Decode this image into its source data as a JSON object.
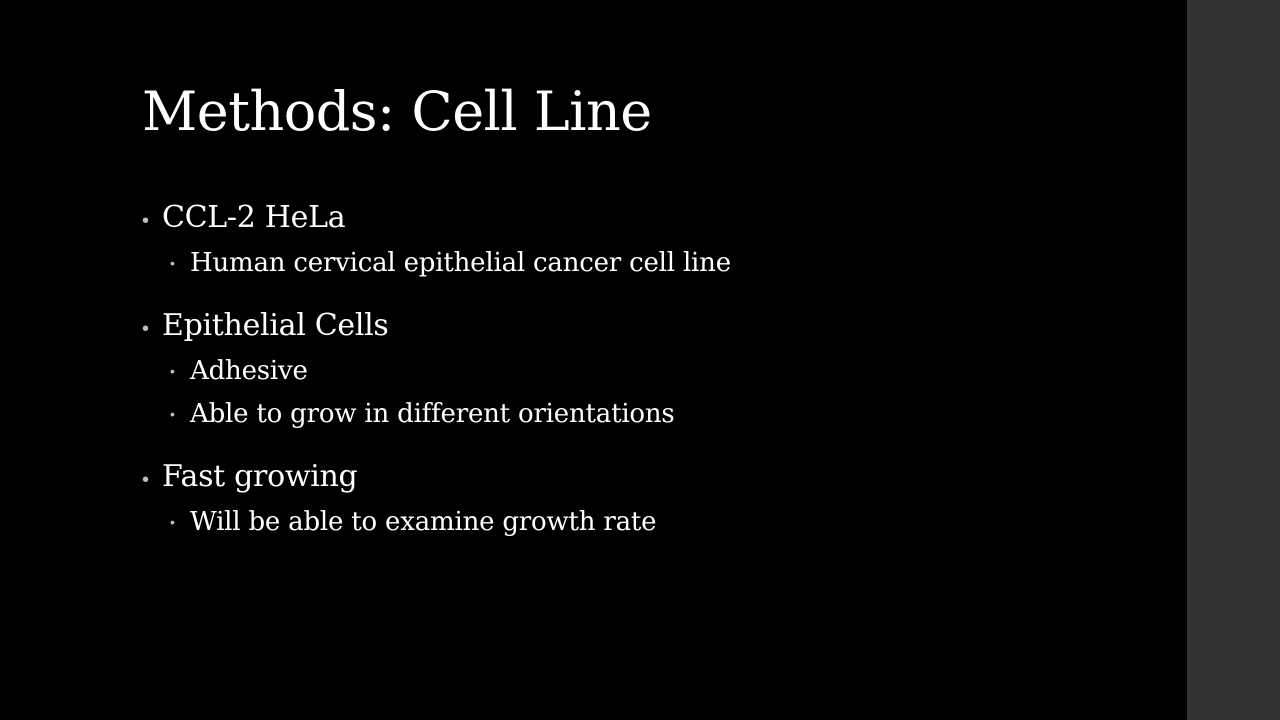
{
  "slide": {
    "title": "Methods: Cell Line",
    "bullet_glyph": "•",
    "sub_bullet_glyph": "•",
    "groups": [
      {
        "heading": "CCL-2 HeLa",
        "items": [
          "Human cervical epithelial cancer cell line"
        ]
      },
      {
        "heading": "Epithelial Cells",
        "items": [
          "Adhesive",
          "Able to grow in different orientations"
        ]
      },
      {
        "heading": "Fast growing",
        "items": [
          "Will be able to examine growth rate"
        ]
      }
    ]
  },
  "colors": {
    "background": "#000000",
    "side_panel": "#333333",
    "text": "#ffffff",
    "bullet": "#bfbfbf"
  }
}
